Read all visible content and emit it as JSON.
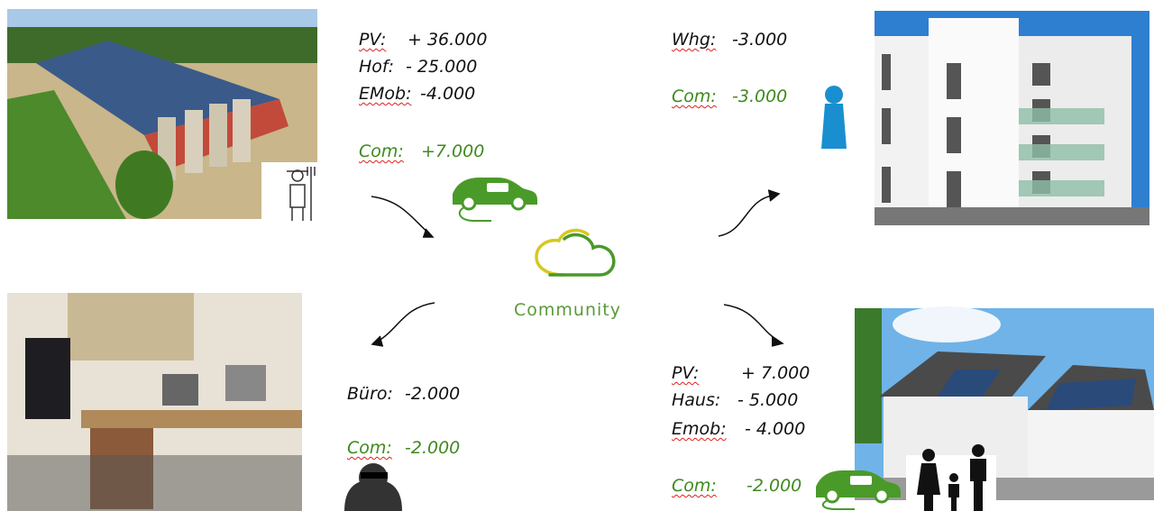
{
  "center": {
    "label": "Community"
  },
  "groups": [
    {
      "lines": [
        {
          "key": "PV:",
          "value": "+ 36.000"
        },
        {
          "key": "Hof:",
          "value": "- 25.000"
        },
        {
          "key": "EMob:",
          "value": "-4.000"
        }
      ],
      "community": {
        "key": "Com:",
        "value": "+7.000"
      }
    },
    {
      "lines": [
        {
          "key": "Whg:",
          "value": "-3.000"
        }
      ],
      "community": {
        "key": "Com:",
        "value": "-3.000"
      }
    },
    {
      "lines": [
        {
          "key": "Büro:",
          "value": "-2.000"
        }
      ],
      "community": {
        "key": "Com:",
        "value": "-2.000"
      }
    },
    {
      "lines": [
        {
          "key": "PV:",
          "value": "+ 7.000"
        },
        {
          "key": "Haus:",
          "value": "- 5.000"
        },
        {
          "key": "Emob:",
          "value": "- 4.000"
        }
      ],
      "community": {
        "key": "Com:",
        "value": "-2.000"
      }
    }
  ]
}
